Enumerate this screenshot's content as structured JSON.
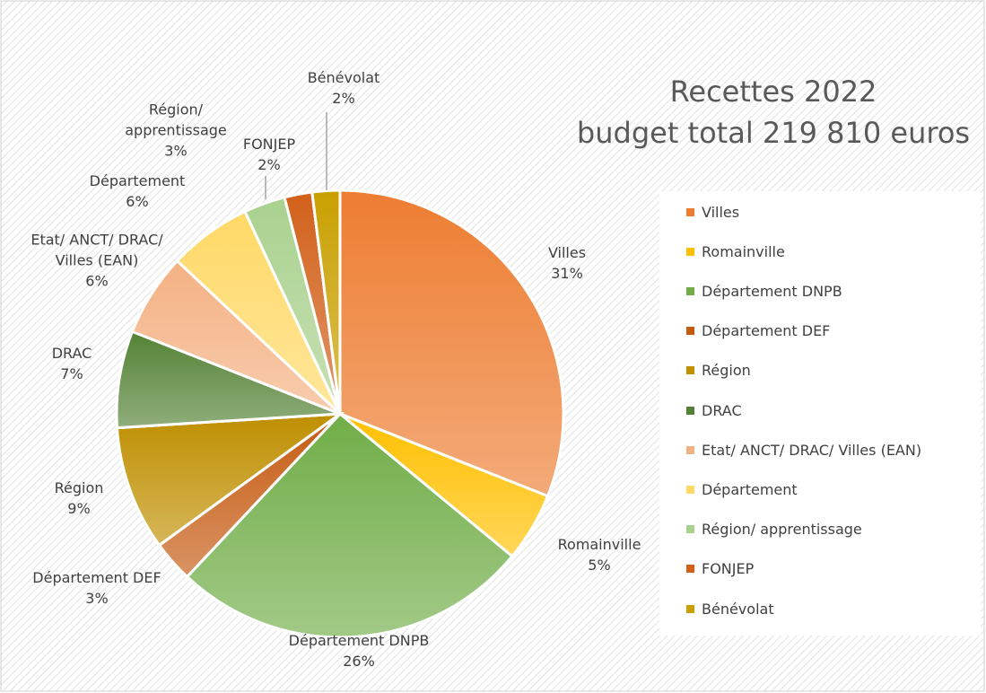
{
  "chart_data": {
    "type": "pie",
    "title": "Recettes 2022",
    "subtitle": "budget total 219 810 euros",
    "categories": [
      "Villes",
      "Romainville",
      "Département DNPB",
      "Département DEF",
      "Région",
      "DRAC",
      "Etat/ ANCT/ DRAC/ Villes (EAN)",
      "Département",
      "Région/ apprentissage",
      "FONJEP",
      "Bénévolat"
    ],
    "values": [
      31,
      5,
      26,
      3,
      9,
      7,
      6,
      6,
      3,
      2,
      2
    ],
    "value_labels": [
      "31%",
      "5%",
      "26%",
      "3%",
      "9%",
      "7%",
      "6%",
      "6%",
      "3%",
      "2%",
      "2%"
    ],
    "colors": [
      "#ED7D31",
      "#FFC000",
      "#70AD47",
      "#C55A11",
      "#BF8F00",
      "#548235",
      "#F4B183",
      "#FFD966",
      "#A9D18E",
      "#D2601A",
      "#C9A000"
    ],
    "legend": "right"
  }
}
